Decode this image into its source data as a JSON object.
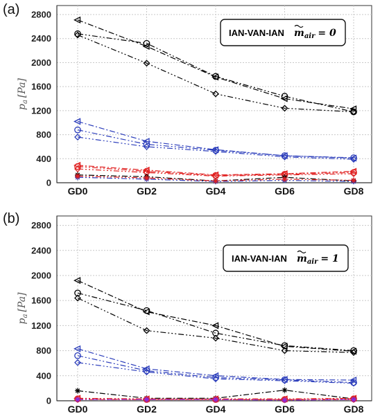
{
  "chart_data": [
    {
      "type": "line",
      "panel_label": "(a)",
      "legend_text": "IAN-VAN-IAN",
      "legend_symbol": "m",
      "legend_subscript": "air",
      "legend_value": "= 0",
      "ylabel_main": "p",
      "ylabel_sub": "a",
      "ylabel_unit": "[Pa]",
      "categories": [
        "GD0",
        "GD2",
        "GD4",
        "GD6",
        "GD8"
      ],
      "yticks": [
        "0",
        "400",
        "800",
        "1200",
        "1600",
        "2000",
        "2400",
        "2800"
      ],
      "ylim": [
        0,
        2950
      ],
      "grid": true,
      "series": [
        {
          "color": "#000000",
          "marker": "triangle",
          "values": [
            2710,
            2270,
            1760,
            1400,
            1230
          ]
        },
        {
          "color": "#000000",
          "marker": "circle",
          "values": [
            2480,
            2320,
            1770,
            1440,
            1180
          ]
        },
        {
          "color": "#000000",
          "marker": "diamond",
          "values": [
            2460,
            1990,
            1480,
            1240,
            1180
          ]
        },
        {
          "color": "#2b3dbb",
          "marker": "triangle",
          "values": [
            1020,
            690,
            550,
            450,
            410
          ]
        },
        {
          "color": "#2b3dbb",
          "marker": "circle",
          "values": [
            880,
            640,
            540,
            450,
            415
          ]
        },
        {
          "color": "#2b3dbb",
          "marker": "diamond",
          "values": [
            760,
            600,
            520,
            430,
            390
          ]
        },
        {
          "color": "#e02020",
          "marker": "triangle",
          "values": [
            290,
            210,
            130,
            150,
            190
          ]
        },
        {
          "color": "#e02020",
          "marker": "circle",
          "values": [
            270,
            190,
            120,
            140,
            170
          ]
        },
        {
          "color": "#e02020",
          "marker": "diamond",
          "values": [
            230,
            170,
            110,
            130,
            150
          ]
        },
        {
          "color": "#000000",
          "marker": "star",
          "values": [
            130,
            100,
            30,
            90,
            30
          ]
        },
        {
          "color": "#2b3dbb",
          "marker": "star",
          "values": [
            90,
            60,
            20,
            40,
            20
          ]
        },
        {
          "color": "#e02020",
          "marker": "star",
          "values": [
            110,
            80,
            30,
            60,
            40
          ]
        }
      ]
    },
    {
      "type": "line",
      "panel_label": "(b)",
      "legend_text": "IAN-VAN-IAN",
      "legend_symbol": "m",
      "legend_subscript": "air",
      "legend_value": "= 1",
      "ylabel_main": "p",
      "ylabel_sub": "a",
      "ylabel_unit": "[Pa]",
      "categories": [
        "GD0",
        "GD2",
        "GD4",
        "GD6",
        "GD8"
      ],
      "yticks": [
        "0",
        "400",
        "800",
        "1200",
        "1600",
        "2000",
        "2400",
        "2800"
      ],
      "ylim": [
        0,
        2950
      ],
      "grid": true,
      "series": [
        {
          "color": "#000000",
          "marker": "triangle",
          "values": [
            1920,
            1420,
            1200,
            870,
            790
          ]
        },
        {
          "color": "#000000",
          "marker": "circle",
          "values": [
            1720,
            1440,
            1080,
            880,
            800
          ]
        },
        {
          "color": "#000000",
          "marker": "diamond",
          "values": [
            1640,
            1120,
            1000,
            800,
            770
          ]
        },
        {
          "color": "#2b3dbb",
          "marker": "triangle",
          "values": [
            830,
            510,
            400,
            340,
            330
          ]
        },
        {
          "color": "#2b3dbb",
          "marker": "circle",
          "values": [
            720,
            480,
            370,
            335,
            290
          ]
        },
        {
          "color": "#2b3dbb",
          "marker": "diamond",
          "values": [
            610,
            460,
            350,
            320,
            280
          ]
        },
        {
          "color": "#000000",
          "marker": "star",
          "values": [
            160,
            40,
            40,
            170,
            30
          ]
        },
        {
          "color": "#e02020",
          "marker": "triangle",
          "values": [
            40,
            30,
            30,
            30,
            40
          ]
        },
        {
          "color": "#e02020",
          "marker": "circle",
          "values": [
            30,
            20,
            20,
            20,
            30
          ]
        },
        {
          "color": "#e02020",
          "marker": "diamond",
          "values": [
            20,
            20,
            20,
            15,
            20
          ]
        },
        {
          "color": "#8a2be2",
          "marker": "star",
          "values": [
            20,
            20,
            20,
            10,
            20
          ]
        }
      ]
    }
  ]
}
